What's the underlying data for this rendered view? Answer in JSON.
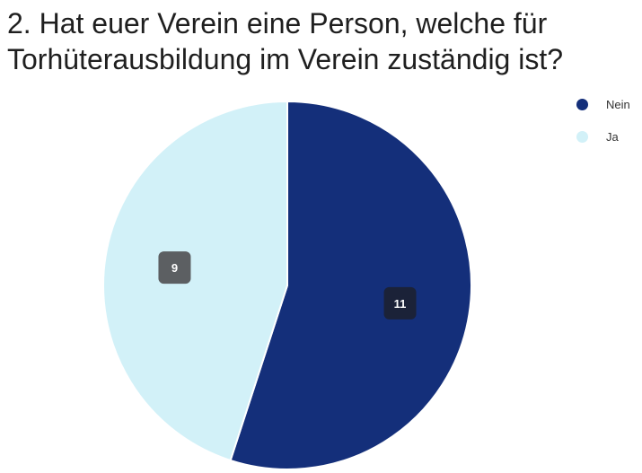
{
  "title": "2. Hat euer Verein eine Person, welche für Torhüterausbildung im Verein zuständig ist?",
  "chart_data": {
    "type": "pie",
    "slices": [
      {
        "label": "Nein",
        "value": 11,
        "color": "#142f7a",
        "label_bg": "#1b2238"
      },
      {
        "label": "Ja",
        "value": 9,
        "color": "#d2f1f8",
        "label_bg": "#5c5f62"
      }
    ],
    "legend_position": "top-right"
  }
}
